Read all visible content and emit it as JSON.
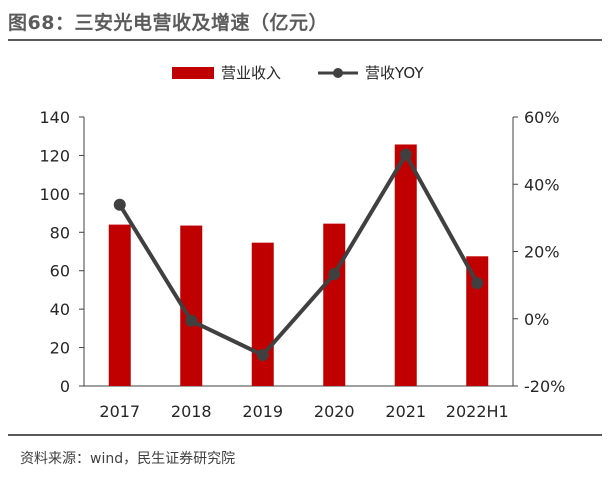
{
  "header": {
    "title": "图68：三安光电营收及增速（亿元）"
  },
  "footer": {
    "source": "资料来源：wind，民生证券研究院"
  },
  "colors": {
    "bar": "#c00000",
    "line": "#404040",
    "axis": "#404040",
    "rule": "#595959"
  },
  "chart_data": {
    "type": "bar+line",
    "title": "三安光电营收及增速（亿元）",
    "categories": [
      "2017",
      "2018",
      "2019",
      "2020",
      "2021",
      "2022H1"
    ],
    "series": [
      {
        "name": "营业收入",
        "type": "bar",
        "axis": "left",
        "values": [
          84,
          83.5,
          74.6,
          84.5,
          125.7,
          67.5
        ]
      },
      {
        "name": "营收YOY",
        "type": "line",
        "axis": "right",
        "values": [
          33.9,
          -0.6,
          -10.8,
          13.3,
          48.8,
          10.6
        ]
      }
    ],
    "y_left": {
      "min": 0,
      "max": 140,
      "ticks": [
        "0",
        "20",
        "40",
        "60",
        "80",
        "100",
        "120",
        "140"
      ]
    },
    "y_right": {
      "min": -20,
      "max": 60,
      "ticks": [
        "-20%",
        "0%",
        "20%",
        "40%",
        "60%"
      ]
    },
    "legend": {
      "position": "top-right",
      "bar_label": "营业收入",
      "line_label": "营收YOY"
    },
    "grid": false
  }
}
